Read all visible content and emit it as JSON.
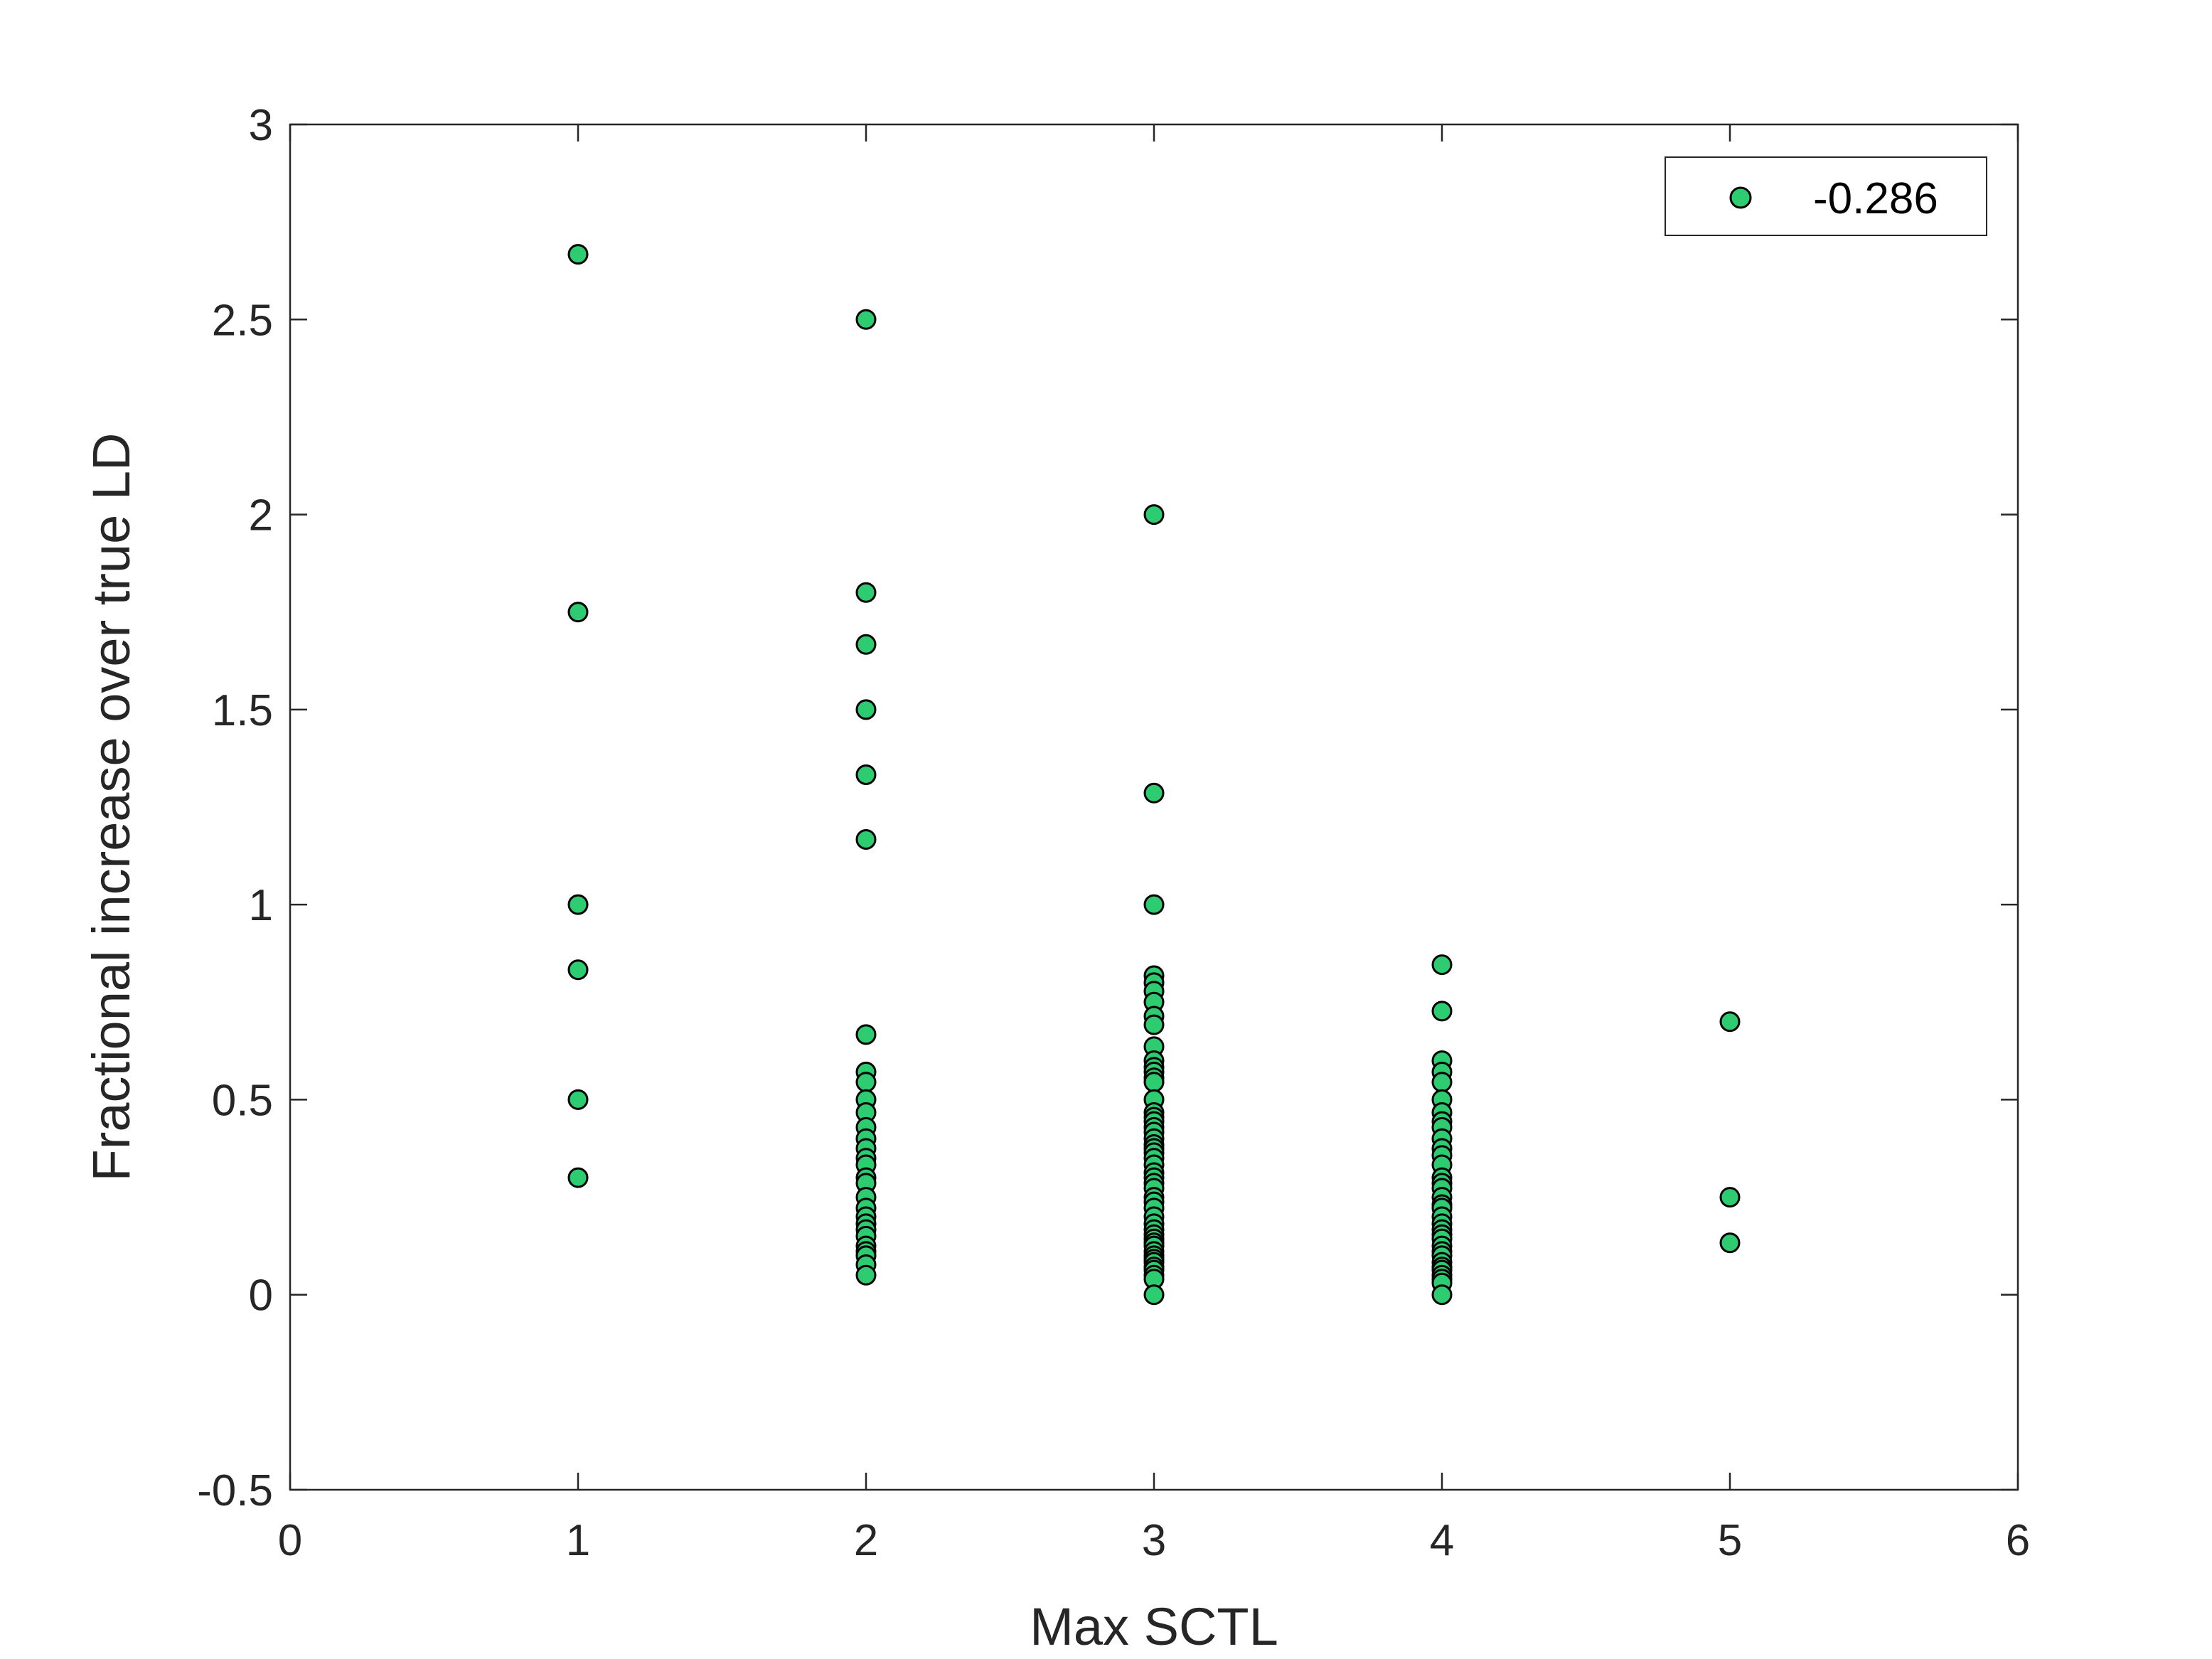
{
  "chart_data": {
    "type": "scatter",
    "title": "",
    "xlabel": "Max SCTL",
    "ylabel": "Fractional increase over true LD",
    "xlim": [
      0,
      6
    ],
    "ylim": [
      -0.5,
      3
    ],
    "xticks": [
      "0",
      "1",
      "2",
      "3",
      "4",
      "5",
      "6"
    ],
    "yticks": [
      "-0.5",
      "0",
      "0.5",
      "1",
      "1.5",
      "2",
      "2.5",
      "3"
    ],
    "grid": false,
    "legend": {
      "position": "top-right"
    },
    "series": [
      {
        "name": "-0.286",
        "color": "#2ecc71",
        "edge_color": "#000000",
        "points": [
          [
            1,
            2.667
          ],
          [
            1,
            1.75
          ],
          [
            1,
            1.0
          ],
          [
            1,
            0.833
          ],
          [
            1,
            0.5
          ],
          [
            1,
            0.3
          ],
          [
            2,
            2.5
          ],
          [
            2,
            1.8
          ],
          [
            2,
            1.667
          ],
          [
            2,
            1.5
          ],
          [
            2,
            1.333
          ],
          [
            2,
            1.167
          ],
          [
            2,
            0.667
          ],
          [
            2,
            0.571
          ],
          [
            2,
            0.545
          ],
          [
            2,
            0.5
          ],
          [
            2,
            0.467
          ],
          [
            2,
            0.429
          ],
          [
            2,
            0.4
          ],
          [
            2,
            0.375
          ],
          [
            2,
            0.35
          ],
          [
            2,
            0.333
          ],
          [
            2,
            0.3
          ],
          [
            2,
            0.286
          ],
          [
            2,
            0.25
          ],
          [
            2,
            0.222
          ],
          [
            2,
            0.2
          ],
          [
            2,
            0.182
          ],
          [
            2,
            0.167
          ],
          [
            2,
            0.15
          ],
          [
            2,
            0.125
          ],
          [
            2,
            0.111
          ],
          [
            2,
            0.1
          ],
          [
            2,
            0.077
          ],
          [
            2,
            0.05
          ],
          [
            3,
            2.0
          ],
          [
            3,
            1.286
          ],
          [
            3,
            1.0
          ],
          [
            3,
            0.818
          ],
          [
            3,
            0.8
          ],
          [
            3,
            0.778
          ],
          [
            3,
            0.75
          ],
          [
            3,
            0.714
          ],
          [
            3,
            0.692
          ],
          [
            3,
            0.636
          ],
          [
            3,
            0.6
          ],
          [
            3,
            0.583
          ],
          [
            3,
            0.571
          ],
          [
            3,
            0.556
          ],
          [
            3,
            0.545
          ],
          [
            3,
            0.5
          ],
          [
            3,
            0.467
          ],
          [
            3,
            0.455
          ],
          [
            3,
            0.444
          ],
          [
            3,
            0.429
          ],
          [
            3,
            0.417
          ],
          [
            3,
            0.4
          ],
          [
            3,
            0.385
          ],
          [
            3,
            0.375
          ],
          [
            3,
            0.364
          ],
          [
            3,
            0.35
          ],
          [
            3,
            0.333
          ],
          [
            3,
            0.313
          ],
          [
            3,
            0.3
          ],
          [
            3,
            0.286
          ],
          [
            3,
            0.273
          ],
          [
            3,
            0.25
          ],
          [
            3,
            0.238
          ],
          [
            3,
            0.222
          ],
          [
            3,
            0.2
          ],
          [
            3,
            0.182
          ],
          [
            3,
            0.167
          ],
          [
            3,
            0.154
          ],
          [
            3,
            0.143
          ],
          [
            3,
            0.133
          ],
          [
            3,
            0.125
          ],
          [
            3,
            0.111
          ],
          [
            3,
            0.1
          ],
          [
            3,
            0.091
          ],
          [
            3,
            0.083
          ],
          [
            3,
            0.071
          ],
          [
            3,
            0.063
          ],
          [
            3,
            0.05
          ],
          [
            3,
            0.04
          ],
          [
            3,
            0.0
          ],
          [
            4,
            0.846
          ],
          [
            4,
            0.727
          ],
          [
            4,
            0.6
          ],
          [
            4,
            0.571
          ],
          [
            4,
            0.545
          ],
          [
            4,
            0.5
          ],
          [
            4,
            0.467
          ],
          [
            4,
            0.444
          ],
          [
            4,
            0.429
          ],
          [
            4,
            0.4
          ],
          [
            4,
            0.375
          ],
          [
            4,
            0.357
          ],
          [
            4,
            0.333
          ],
          [
            4,
            0.3
          ],
          [
            4,
            0.286
          ],
          [
            4,
            0.273
          ],
          [
            4,
            0.25
          ],
          [
            4,
            0.231
          ],
          [
            4,
            0.222
          ],
          [
            4,
            0.2
          ],
          [
            4,
            0.182
          ],
          [
            4,
            0.167
          ],
          [
            4,
            0.154
          ],
          [
            4,
            0.143
          ],
          [
            4,
            0.125
          ],
          [
            4,
            0.111
          ],
          [
            4,
            0.1
          ],
          [
            4,
            0.083
          ],
          [
            4,
            0.071
          ],
          [
            4,
            0.063
          ],
          [
            4,
            0.05
          ],
          [
            4,
            0.04
          ],
          [
            4,
            0.03
          ],
          [
            4,
            0.0
          ],
          [
            5,
            0.7
          ],
          [
            5,
            0.25
          ],
          [
            5,
            0.133
          ]
        ]
      }
    ]
  }
}
